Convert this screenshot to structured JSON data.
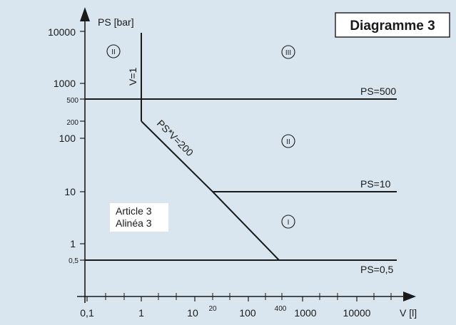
{
  "diagram": {
    "title": "Diagramme 3",
    "y_axis_label": "PS [bar]",
    "x_axis_label": "V [l]",
    "x_ticks_major": [
      "0,1",
      "1",
      "10",
      "100",
      "1000",
      "10000"
    ],
    "x_ticks_minor": [
      "20",
      "400"
    ],
    "y_ticks_major": [
      "10000",
      "1000",
      "100",
      "10",
      "1",
      "0,5"
    ],
    "y_ticks_minor": [
      "500",
      "200"
    ],
    "lines": {
      "v1": "V=1",
      "psv": "PS*V=200",
      "ps500": "PS=500",
      "ps10": "PS=10",
      "ps05": "PS=0,5"
    },
    "regions": {
      "top_left": "II",
      "top_right": "III",
      "middle": "II",
      "lower": "I"
    },
    "note": {
      "line1": "Article 3",
      "line2": "Alinéa 3"
    },
    "colors": {
      "panel": "#d9e6ef",
      "line": "#1a1a1a",
      "title_box": "#ffffff"
    }
  }
}
